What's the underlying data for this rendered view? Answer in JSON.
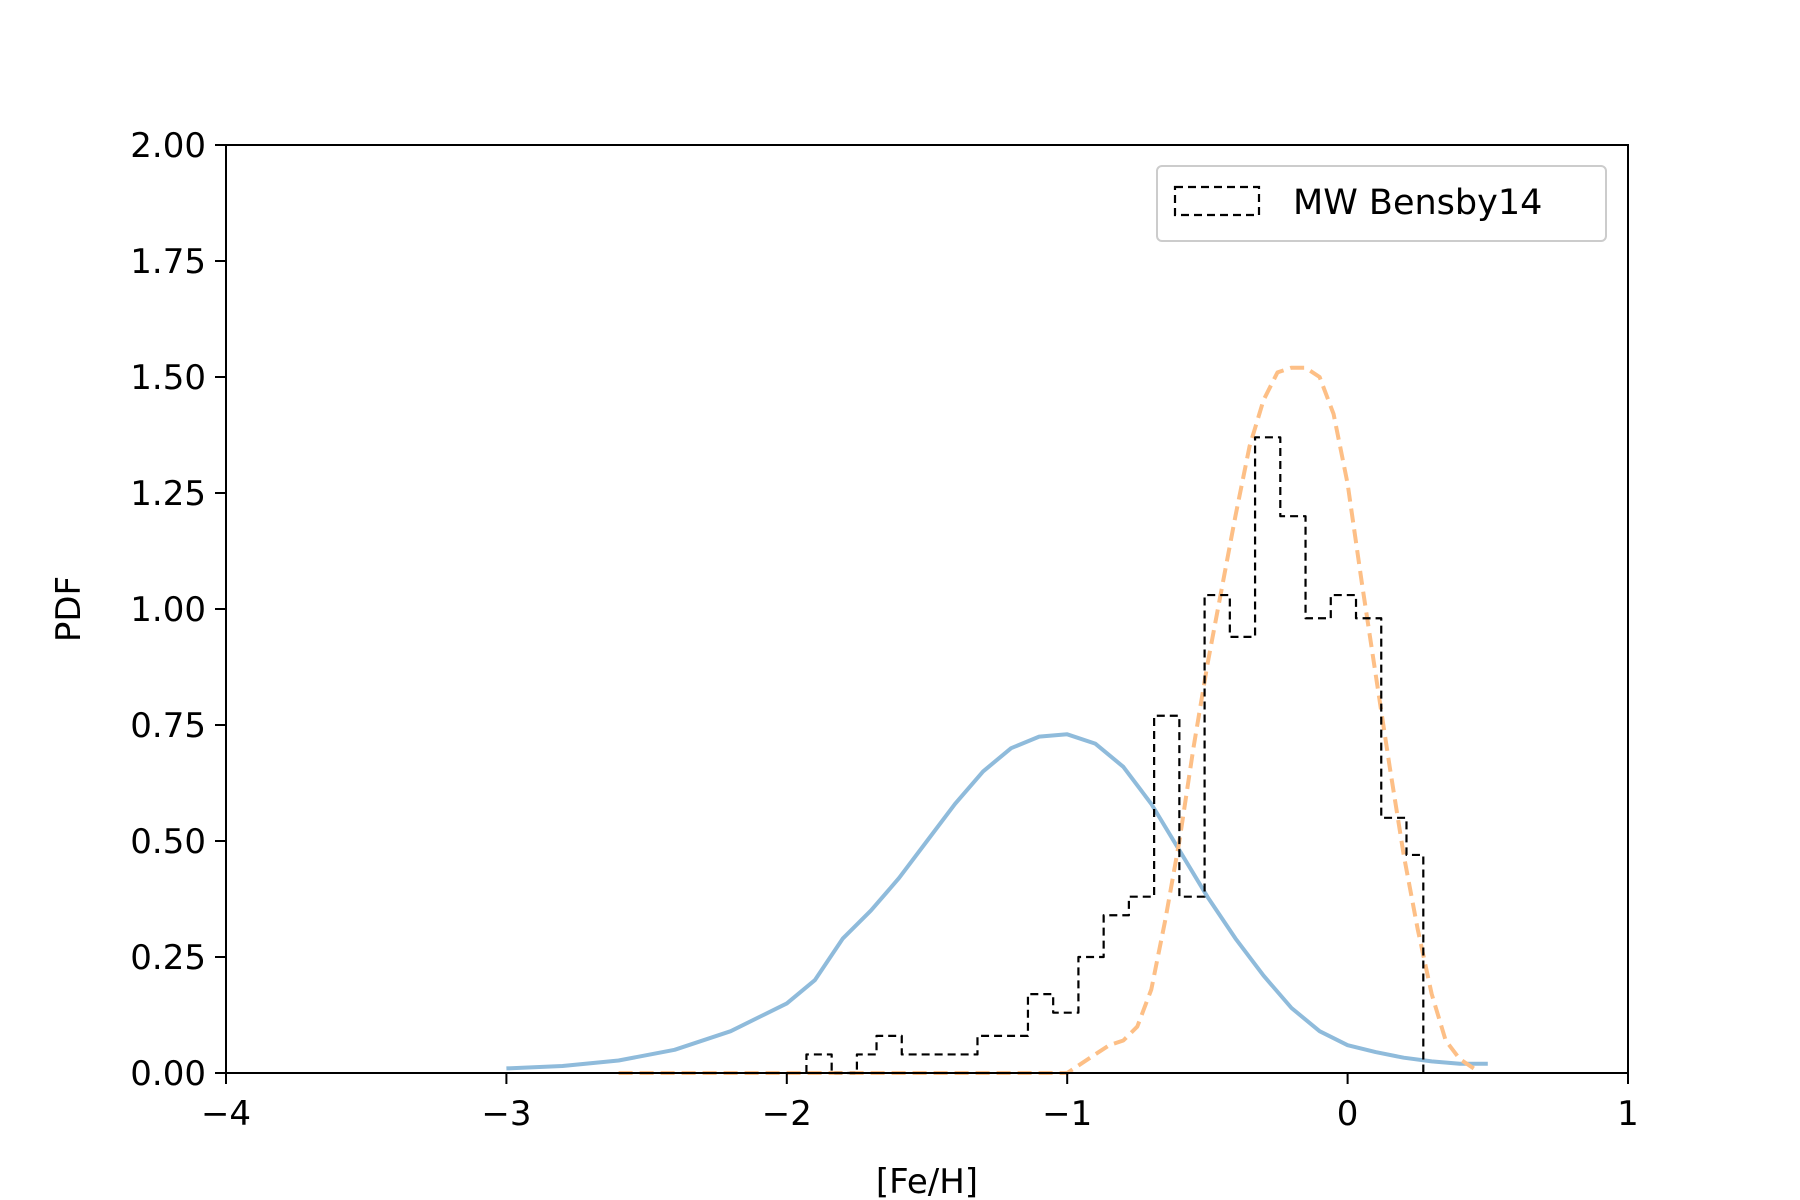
{
  "chart_data": {
    "type": "line",
    "title": "",
    "xlabel": "[Fe/H]",
    "ylabel": "PDF",
    "xlim": [
      -4,
      1
    ],
    "ylim": [
      0,
      2
    ],
    "xticks": [
      -4,
      -3,
      -2,
      -1,
      0,
      1
    ],
    "xtick_labels": [
      "−4",
      "−3",
      "−2",
      "−1",
      "0",
      "1"
    ],
    "yticks": [
      0,
      0.25,
      0.5,
      0.75,
      1.0,
      1.25,
      1.5,
      1.75,
      2.0
    ],
    "ytick_labels": [
      "0.00",
      "0.25",
      "0.50",
      "0.75",
      "1.00",
      "1.25",
      "1.50",
      "1.75",
      "2.00"
    ],
    "grid": false,
    "legend": {
      "location": "top-right",
      "entries": [
        "MW Bensby14"
      ]
    },
    "series": [
      {
        "kind": "line",
        "style": "solid",
        "color": "#8fbbdb",
        "x": [
          -3.0,
          -2.8,
          -2.6,
          -2.4,
          -2.2,
          -2.0,
          -1.9,
          -1.8,
          -1.7,
          -1.6,
          -1.5,
          -1.4,
          -1.3,
          -1.2,
          -1.1,
          -1.0,
          -0.9,
          -0.8,
          -0.7,
          -0.6,
          -0.5,
          -0.4,
          -0.3,
          -0.2,
          -0.1,
          0.0,
          0.1,
          0.2,
          0.3,
          0.4,
          0.5
        ],
        "y": [
          0.01,
          0.015,
          0.027,
          0.05,
          0.09,
          0.15,
          0.2,
          0.29,
          0.35,
          0.42,
          0.5,
          0.58,
          0.65,
          0.7,
          0.725,
          0.73,
          0.71,
          0.66,
          0.58,
          0.48,
          0.38,
          0.29,
          0.21,
          0.14,
          0.09,
          0.06,
          0.045,
          0.033,
          0.025,
          0.02,
          0.02
        ]
      },
      {
        "kind": "line",
        "style": "dashed",
        "color": "#fdbf86",
        "x": [
          -2.6,
          -2.0,
          -1.5,
          -1.2,
          -1.0,
          -0.95,
          -0.9,
          -0.85,
          -0.8,
          -0.75,
          -0.7,
          -0.65,
          -0.6,
          -0.55,
          -0.5,
          -0.45,
          -0.4,
          -0.35,
          -0.3,
          -0.25,
          -0.2,
          -0.15,
          -0.1,
          -0.05,
          0.0,
          0.05,
          0.1,
          0.15,
          0.2,
          0.25,
          0.3,
          0.35,
          0.4,
          0.45
        ],
        "y": [
          0.0,
          0.0,
          0.0,
          0.0,
          0.0,
          0.02,
          0.04,
          0.06,
          0.07,
          0.1,
          0.18,
          0.33,
          0.5,
          0.7,
          0.88,
          1.04,
          1.2,
          1.35,
          1.45,
          1.51,
          1.52,
          1.52,
          1.5,
          1.42,
          1.27,
          1.06,
          0.86,
          0.66,
          0.47,
          0.31,
          0.17,
          0.07,
          0.03,
          0.01
        ]
      },
      {
        "name": "MW Bensby14",
        "kind": "step",
        "style": "dashed",
        "color": "#000000",
        "bin_edges": [
          -1.93,
          -1.84,
          -1.75,
          -1.68,
          -1.59,
          -1.5,
          -1.32,
          -1.14,
          -1.05,
          -0.96,
          -0.87,
          -0.78,
          -0.69,
          -0.6,
          -0.51,
          -0.42,
          -0.33,
          -0.24,
          -0.15,
          -0.06,
          0.03,
          0.12,
          0.21,
          0.27
        ],
        "values": [
          0.04,
          0.0,
          0.04,
          0.08,
          0.04,
          0.04,
          0.08,
          0.17,
          0.13,
          0.25,
          0.34,
          0.38,
          0.77,
          0.38,
          1.03,
          0.94,
          1.37,
          1.2,
          0.98,
          1.03,
          0.98,
          0.55,
          0.47
        ]
      }
    ]
  }
}
